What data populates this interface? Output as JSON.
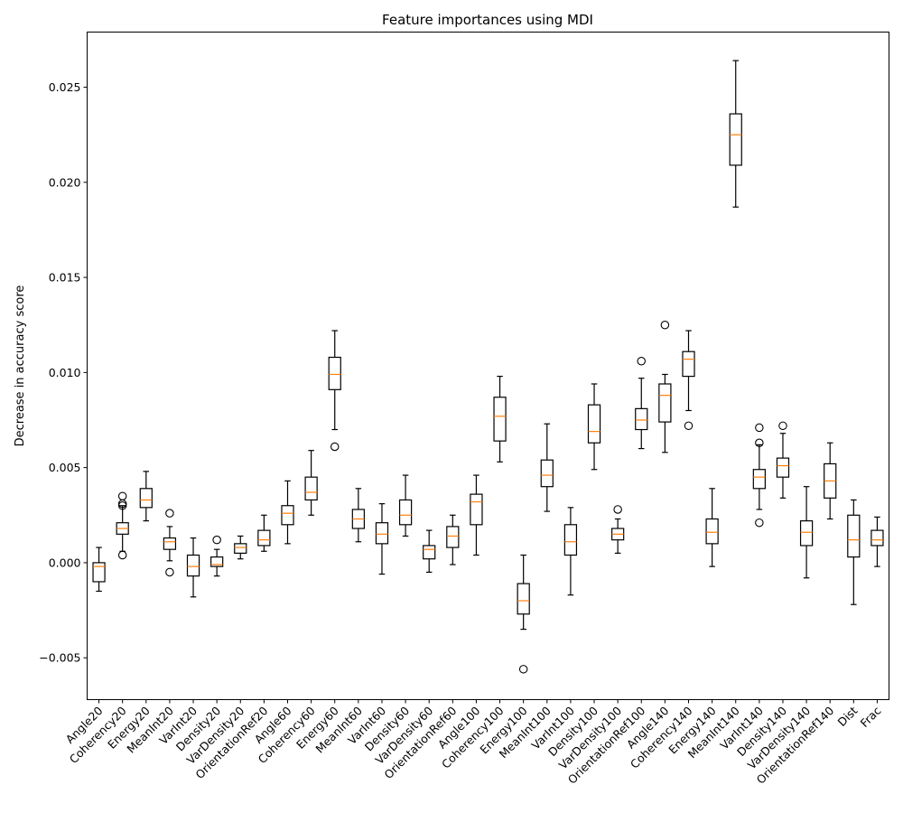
{
  "chart_data": {
    "type": "boxplot",
    "title": "Feature importances using MDI",
    "xlabel": "",
    "ylabel": "Decrease in accuracy score",
    "ylim": [
      -0.0072,
      0.0279
    ],
    "yticks": [
      -0.005,
      0.0,
      0.005,
      0.01,
      0.015,
      0.02,
      0.025
    ],
    "ytick_labels": [
      "−0.005",
      "0.000",
      "0.005",
      "0.010",
      "0.015",
      "0.020",
      "0.025"
    ],
    "grid": false,
    "colors": {
      "box": "#000000",
      "median": "#ff7f0e",
      "frame": "#000000"
    },
    "categories": [
      "Angle20",
      "Coherency20",
      "Energy20",
      "MeanInt20",
      "VarInt20",
      "Density20",
      "VarDensity20",
      "OrientationRef20",
      "Angle60",
      "Coherency60",
      "Energy60",
      "MeanInt60",
      "VarInt60",
      "Density60",
      "VarDensity60",
      "OrientationRef60",
      "Angle100",
      "Coherency100",
      "Energy100",
      "MeanInt100",
      "VarInt100",
      "Density100",
      "VarDensity100",
      "OrientationRef100",
      "Angle140",
      "Coherency140",
      "Energy140",
      "MeanInt140",
      "VarInt140",
      "Density140",
      "VarDensity140",
      "OrientationRef140",
      "Dist",
      "Frac"
    ],
    "boxes": [
      {
        "whislo": -0.0015,
        "q1": -0.001,
        "med": -0.0002,
        "q3": 0.0,
        "whishi": 0.0008,
        "fliers": []
      },
      {
        "whislo": 0.0006,
        "q1": 0.0015,
        "med": 0.0018,
        "q3": 0.0021,
        "whishi": 0.003,
        "fliers": [
          0.0004,
          0.003,
          0.0031,
          0.0035
        ]
      },
      {
        "whislo": 0.0022,
        "q1": 0.0029,
        "med": 0.0033,
        "q3": 0.0039,
        "whishi": 0.0048,
        "fliers": []
      },
      {
        "whislo": 0.0001,
        "q1": 0.0007,
        "med": 0.0011,
        "q3": 0.0013,
        "whishi": 0.0019,
        "fliers": [
          -0.0005,
          0.0026
        ]
      },
      {
        "whislo": -0.0018,
        "q1": -0.0007,
        "med": -0.0002,
        "q3": 0.0004,
        "whishi": 0.0013,
        "fliers": []
      },
      {
        "whislo": -0.0007,
        "q1": -0.0002,
        "med": -0.0001,
        "q3": 0.0003,
        "whishi": 0.0007,
        "fliers": [
          0.0012
        ]
      },
      {
        "whislo": 0.0002,
        "q1": 0.0005,
        "med": 0.0008,
        "q3": 0.001,
        "whishi": 0.0014,
        "fliers": []
      },
      {
        "whislo": 0.0006,
        "q1": 0.0009,
        "med": 0.0012,
        "q3": 0.0017,
        "whishi": 0.0025,
        "fliers": []
      },
      {
        "whislo": 0.001,
        "q1": 0.002,
        "med": 0.0026,
        "q3": 0.003,
        "whishi": 0.0043,
        "fliers": []
      },
      {
        "whislo": 0.0025,
        "q1": 0.0033,
        "med": 0.0037,
        "q3": 0.0045,
        "whishi": 0.0059,
        "fliers": []
      },
      {
        "whislo": 0.007,
        "q1": 0.0091,
        "med": 0.0099,
        "q3": 0.0108,
        "whishi": 0.0122,
        "fliers": [
          0.0061
        ]
      },
      {
        "whislo": 0.0011,
        "q1": 0.0018,
        "med": 0.0023,
        "q3": 0.0028,
        "whishi": 0.0039,
        "fliers": []
      },
      {
        "whislo": -0.0006,
        "q1": 0.001,
        "med": 0.0015,
        "q3": 0.0021,
        "whishi": 0.0031,
        "fliers": []
      },
      {
        "whislo": 0.0014,
        "q1": 0.002,
        "med": 0.0025,
        "q3": 0.0033,
        "whishi": 0.0046,
        "fliers": []
      },
      {
        "whislo": -0.0005,
        "q1": 0.0002,
        "med": 0.0007,
        "q3": 0.0009,
        "whishi": 0.0017,
        "fliers": []
      },
      {
        "whislo": -0.0001,
        "q1": 0.0008,
        "med": 0.0014,
        "q3": 0.0019,
        "whishi": 0.0025,
        "fliers": []
      },
      {
        "whislo": 0.0004,
        "q1": 0.002,
        "med": 0.0032,
        "q3": 0.0036,
        "whishi": 0.0046,
        "fliers": []
      },
      {
        "whislo": 0.0053,
        "q1": 0.0064,
        "med": 0.0077,
        "q3": 0.0087,
        "whishi": 0.0098,
        "fliers": []
      },
      {
        "whislo": -0.0035,
        "q1": -0.0027,
        "med": -0.002,
        "q3": -0.0011,
        "whishi": 0.0004,
        "fliers": [
          -0.0056
        ]
      },
      {
        "whislo": 0.0027,
        "q1": 0.004,
        "med": 0.0046,
        "q3": 0.0054,
        "whishi": 0.0073,
        "fliers": []
      },
      {
        "whislo": -0.0017,
        "q1": 0.0004,
        "med": 0.0011,
        "q3": 0.002,
        "whishi": 0.0029,
        "fliers": []
      },
      {
        "whislo": 0.0049,
        "q1": 0.0063,
        "med": 0.0069,
        "q3": 0.0083,
        "whishi": 0.0094,
        "fliers": []
      },
      {
        "whislo": 0.0005,
        "q1": 0.0012,
        "med": 0.0015,
        "q3": 0.0018,
        "whishi": 0.0023,
        "fliers": [
          0.0028
        ]
      },
      {
        "whislo": 0.006,
        "q1": 0.007,
        "med": 0.0075,
        "q3": 0.0081,
        "whishi": 0.0097,
        "fliers": [
          0.0106
        ]
      },
      {
        "whislo": 0.0058,
        "q1": 0.0074,
        "med": 0.0088,
        "q3": 0.0094,
        "whishi": 0.0099,
        "fliers": [
          0.0125
        ]
      },
      {
        "whislo": 0.008,
        "q1": 0.0098,
        "med": 0.0107,
        "q3": 0.0111,
        "whishi": 0.0122,
        "fliers": [
          0.0072
        ]
      },
      {
        "whislo": -0.0002,
        "q1": 0.001,
        "med": 0.0016,
        "q3": 0.0023,
        "whishi": 0.0039,
        "fliers": []
      },
      {
        "whislo": 0.0187,
        "q1": 0.0209,
        "med": 0.0225,
        "q3": 0.0236,
        "whishi": 0.0264,
        "fliers": []
      },
      {
        "whislo": 0.0028,
        "q1": 0.0039,
        "med": 0.0045,
        "q3": 0.0049,
        "whishi": 0.0062,
        "fliers": [
          0.0021,
          0.0063,
          0.0071
        ]
      },
      {
        "whislo": 0.0034,
        "q1": 0.0045,
        "med": 0.0051,
        "q3": 0.0055,
        "whishi": 0.0068,
        "fliers": [
          0.0072
        ]
      },
      {
        "whislo": -0.0008,
        "q1": 0.0009,
        "med": 0.0016,
        "q3": 0.0022,
        "whishi": 0.004,
        "fliers": []
      },
      {
        "whislo": 0.0023,
        "q1": 0.0034,
        "med": 0.0043,
        "q3": 0.0052,
        "whishi": 0.0063,
        "fliers": []
      },
      {
        "whislo": -0.0022,
        "q1": 0.0003,
        "med": 0.0012,
        "q3": 0.0025,
        "whishi": 0.0033,
        "fliers": []
      },
      {
        "whislo": -0.0002,
        "q1": 0.0009,
        "med": 0.0012,
        "q3": 0.0017,
        "whishi": 0.0024,
        "fliers": []
      }
    ]
  }
}
